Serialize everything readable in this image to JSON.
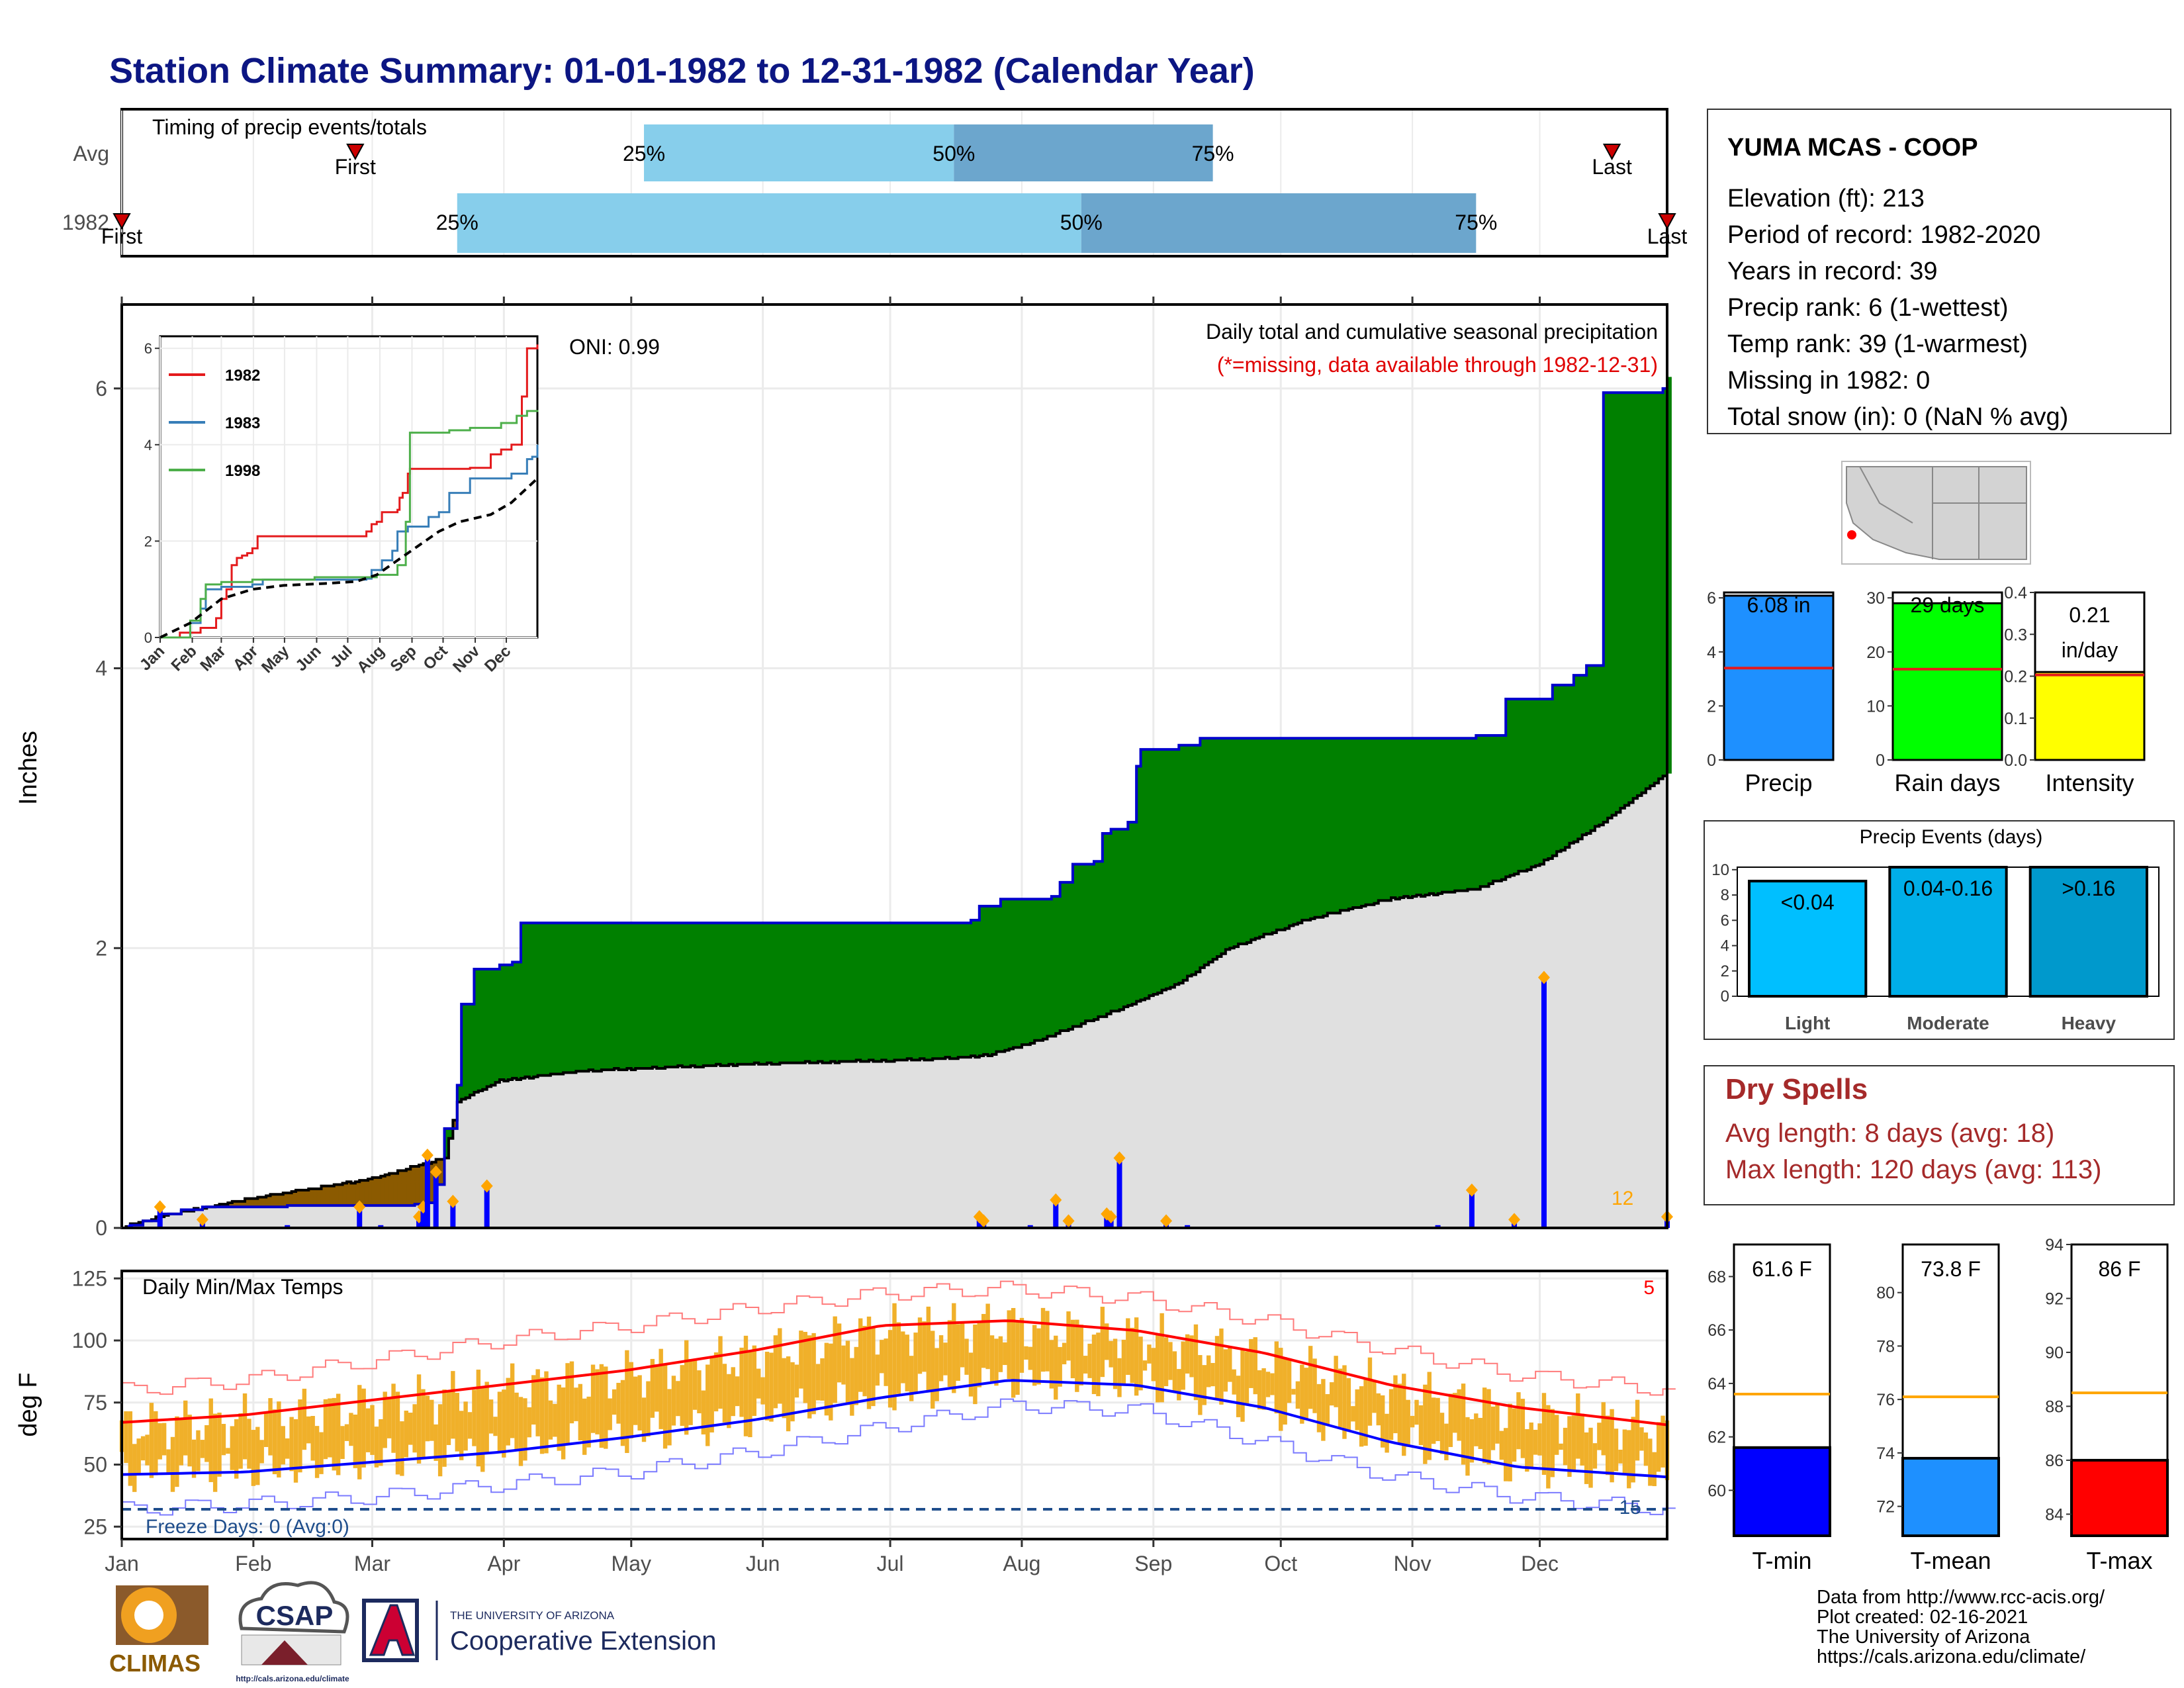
{
  "title": "Station Climate Summary: 01-01-1982 to 12-31-1982 (Calendar Year)",
  "timing": {
    "label": "Timing of precip events/totals",
    "rows": [
      {
        "name": "Avg",
        "first": "First",
        "last": "Last",
        "p25": "25%",
        "p50": "50%",
        "p75": "75%",
        "first_doy": 56,
        "q25_doy": 124,
        "q50_doy": 197,
        "q75_doy": 258,
        "last_doy": 352
      },
      {
        "name": "1982",
        "first": "First",
        "last": "Last",
        "p25": "25%",
        "p50": "50%",
        "p75": "75%",
        "first_doy": 1,
        "q25_doy": 80,
        "q50_doy": 227,
        "q75_doy": 320,
        "last_doy": 365
      }
    ],
    "colors": {
      "q1": "#87ceeb",
      "q2": "#6ca6cd",
      "marker": "#cc0000"
    }
  },
  "station": {
    "name": "YUMA MCAS - COOP",
    "lines": [
      "Elevation (ft): 213",
      "Period of record: 1982-2020",
      "Years in record: 39",
      "Precip rank: 6 (1-wettest)",
      "Temp rank: 39 (1-warmest)",
      "Missing in 1982: 0",
      "Total snow (in): 0 (NaN % avg)"
    ]
  },
  "precip_panel": {
    "ylabel": "Inches",
    "oni": "ONI: 0.99",
    "heading": "Daily total and cumulative seasonal precipitation",
    "missing_note": "(*=missing, data available through 1982-12-31)",
    "count_label": "12",
    "chart_data": {
      "type": "area",
      "ylim": [
        0,
        6.6
      ],
      "yticks": [
        0,
        2,
        4,
        6
      ],
      "cumulative_1982": [
        [
          1,
          0
        ],
        [
          3,
          0.02
        ],
        [
          6,
          0.05
        ],
        [
          10,
          0.1
        ],
        [
          15,
          0.13
        ],
        [
          20,
          0.15
        ],
        [
          40,
          0.16
        ],
        [
          70,
          0.17
        ],
        [
          72,
          0.18
        ],
        [
          75,
          0.31
        ],
        [
          77,
          0.71
        ],
        [
          80,
          1.02
        ],
        [
          81,
          1.6
        ],
        [
          84,
          1.85
        ],
        [
          90,
          1.88
        ],
        [
          93,
          1.9
        ],
        [
          95,
          2.18
        ],
        [
          180,
          2.18
        ],
        [
          201,
          2.2
        ],
        [
          203,
          2.3
        ],
        [
          208,
          2.35
        ],
        [
          220,
          2.37
        ],
        [
          222,
          2.47
        ],
        [
          225,
          2.6
        ],
        [
          230,
          2.62
        ],
        [
          232,
          2.82
        ],
        [
          234,
          2.85
        ],
        [
          238,
          2.9
        ],
        [
          240,
          3.3
        ],
        [
          241,
          3.42
        ],
        [
          250,
          3.45
        ],
        [
          255,
          3.5
        ],
        [
          320,
          3.52
        ],
        [
          327,
          3.78
        ],
        [
          338,
          3.88
        ],
        [
          343,
          3.95
        ],
        [
          346,
          4.02
        ],
        [
          350,
          5.97
        ],
        [
          364,
          6.0
        ],
        [
          365,
          6.08
        ]
      ],
      "cumulative_avg": [
        [
          1,
          0
        ],
        [
          10,
          0.08
        ],
        [
          30,
          0.2
        ],
        [
          60,
          0.35
        ],
        [
          77,
          0.5
        ],
        [
          80,
          0.9
        ],
        [
          90,
          1.05
        ],
        [
          110,
          1.12
        ],
        [
          150,
          1.17
        ],
        [
          190,
          1.2
        ],
        [
          205,
          1.23
        ],
        [
          218,
          1.35
        ],
        [
          235,
          1.55
        ],
        [
          250,
          1.75
        ],
        [
          262,
          2.0
        ],
        [
          280,
          2.2
        ],
        [
          300,
          2.35
        ],
        [
          320,
          2.42
        ],
        [
          335,
          2.6
        ],
        [
          350,
          2.9
        ],
        [
          365,
          3.25
        ]
      ],
      "daily_bars": [
        [
          3,
          0.02
        ],
        [
          10,
          0.15
        ],
        [
          20,
          0.06
        ],
        [
          40,
          0.02
        ],
        [
          57,
          0.15
        ],
        [
          62,
          0.02
        ],
        [
          71,
          0.08
        ],
        [
          72,
          0.15
        ],
        [
          73,
          0.52
        ],
        [
          75,
          0.4
        ],
        [
          79,
          0.19
        ],
        [
          87,
          0.3
        ],
        [
          203,
          0.08
        ],
        [
          204,
          0.05
        ],
        [
          215,
          0.02
        ],
        [
          221,
          0.2
        ],
        [
          224,
          0.05
        ],
        [
          233,
          0.1
        ],
        [
          234,
          0.08
        ],
        [
          236,
          0.5
        ],
        [
          247,
          0.05
        ],
        [
          252,
          0.02
        ],
        [
          311,
          0.02
        ],
        [
          319,
          0.27
        ],
        [
          329,
          0.06
        ],
        [
          336,
          1.79
        ],
        [
          365,
          0.08
        ]
      ],
      "colors": {
        "surplus": "#008000",
        "deficit": "#8b5a00",
        "avg": "#e0e0e0",
        "bars": "#0000ff",
        "marker": "#ffa500"
      }
    }
  },
  "inset": {
    "series": [
      {
        "name": "1982",
        "color": "#e41a1c",
        "points": [
          [
            1,
            0
          ],
          [
            20,
            0.1
          ],
          [
            40,
            0.2
          ],
          [
            55,
            0.4
          ],
          [
            60,
            0.8
          ],
          [
            65,
            1.0
          ],
          [
            70,
            1.5
          ],
          [
            75,
            1.65
          ],
          [
            80,
            1.7
          ],
          [
            85,
            1.75
          ],
          [
            90,
            1.85
          ],
          [
            95,
            2.1
          ],
          [
            185,
            2.1
          ],
          [
            200,
            2.2
          ],
          [
            205,
            2.35
          ],
          [
            210,
            2.4
          ],
          [
            215,
            2.6
          ],
          [
            230,
            2.65
          ],
          [
            232,
            2.9
          ],
          [
            235,
            3.0
          ],
          [
            240,
            3.4
          ],
          [
            242,
            3.5
          ],
          [
            300,
            3.52
          ],
          [
            320,
            3.8
          ],
          [
            330,
            3.9
          ],
          [
            340,
            4.0
          ],
          [
            350,
            5.0
          ],
          [
            355,
            6.0
          ],
          [
            365,
            6.08
          ]
        ]
      },
      {
        "name": "1983",
        "color": "#377eb8",
        "points": [
          [
            1,
            0
          ],
          [
            30,
            0.3
          ],
          [
            40,
            0.6
          ],
          [
            45,
            1.0
          ],
          [
            60,
            1.05
          ],
          [
            90,
            1.1
          ],
          [
            100,
            1.2
          ],
          [
            200,
            1.22
          ],
          [
            205,
            1.4
          ],
          [
            215,
            1.6
          ],
          [
            225,
            1.8
          ],
          [
            230,
            2.2
          ],
          [
            240,
            2.3
          ],
          [
            260,
            2.5
          ],
          [
            270,
            2.6
          ],
          [
            280,
            3.0
          ],
          [
            300,
            3.3
          ],
          [
            340,
            3.4
          ],
          [
            355,
            3.7
          ],
          [
            360,
            3.75
          ],
          [
            365,
            4.0
          ]
        ]
      },
      {
        "name": "1998",
        "color": "#4daf4a",
        "points": [
          [
            1,
            0
          ],
          [
            30,
            0.35
          ],
          [
            40,
            0.8
          ],
          [
            45,
            1.1
          ],
          [
            60,
            1.15
          ],
          [
            90,
            1.2
          ],
          [
            150,
            1.25
          ],
          [
            200,
            1.25
          ],
          [
            210,
            1.3
          ],
          [
            230,
            1.5
          ],
          [
            238,
            2.4
          ],
          [
            242,
            4.25
          ],
          [
            280,
            4.3
          ],
          [
            300,
            4.35
          ],
          [
            330,
            4.45
          ],
          [
            345,
            4.6
          ],
          [
            355,
            4.7
          ],
          [
            365,
            4.72
          ]
        ]
      },
      {
        "name": "avg",
        "color": "#000000",
        "points": [
          [
            1,
            0
          ],
          [
            30,
            0.3
          ],
          [
            60,
            0.8
          ],
          [
            90,
            1.0
          ],
          [
            120,
            1.08
          ],
          [
            160,
            1.12
          ],
          [
            190,
            1.16
          ],
          [
            210,
            1.3
          ],
          [
            230,
            1.6
          ],
          [
            250,
            1.9
          ],
          [
            270,
            2.2
          ],
          [
            290,
            2.4
          ],
          [
            320,
            2.55
          ],
          [
            340,
            2.8
          ],
          [
            355,
            3.1
          ],
          [
            365,
            3.3
          ]
        ]
      }
    ],
    "months": [
      "Jan",
      "Feb",
      "Mar",
      "Apr",
      "May",
      "Jun",
      "Jul",
      "Aug",
      "Sep",
      "Oct",
      "Nov",
      "Dec"
    ],
    "yticks": [
      0,
      2,
      4,
      6
    ]
  },
  "summary_bars": {
    "charts": [
      {
        "label": "Precip",
        "value_text": "6.08 in",
        "value": 6.08,
        "avg": 3.4,
        "ymax": 6.2,
        "ticks": [
          0,
          2,
          4,
          6
        ],
        "color": "#1e90ff"
      },
      {
        "label": "Rain days",
        "value_text": "29 days",
        "value": 29,
        "avg": 16.8,
        "ymax": 31,
        "ticks": [
          0,
          10,
          20,
          30
        ],
        "color": "#00ff00"
      },
      {
        "label": "Intensity",
        "value_text": "0.21 in/day",
        "value_line1": "0.21",
        "value_line2": "in/day",
        "value": 0.21,
        "avg": 0.203,
        "ymax": 0.4,
        "ticks": [
          0.0,
          0.1,
          0.2,
          0.3,
          0.4
        ],
        "color": "#ffff00"
      }
    ],
    "avg_color": "#e41a1c"
  },
  "precip_events": {
    "title": "Precip Events (days)",
    "ymax": 10.2,
    "ticks": [
      0,
      2,
      4,
      6,
      8,
      10
    ],
    "bars": [
      {
        "category": "Light",
        "label": "<0.04",
        "value": 9.1,
        "color": "#00bfff"
      },
      {
        "category": "Moderate",
        "label": "0.04-0.16",
        "value": 10.2,
        "color": "#00aee8"
      },
      {
        "category": "Heavy",
        "label": ">0.16",
        "value": 10.2,
        "color": "#0099cc"
      }
    ]
  },
  "dry_spells": {
    "title": "Dry Spells",
    "avg": "Avg length: 8 days (avg: 18)",
    "max": "Max length: 120 days (avg: 113)",
    "color": "#a52a2a"
  },
  "temp_panel": {
    "ylabel": "deg F",
    "label": "Daily Min/Max Temps",
    "freeze": "Freeze Days: 0 (Avg:0)",
    "hot_count": "5",
    "cold_count": "15",
    "chart_data": {
      "type": "bar",
      "ylim": [
        20,
        128
      ],
      "yticks": [
        25,
        50,
        75,
        100,
        125
      ],
      "freeze_line": 32,
      "avg_max": [
        [
          1,
          67
        ],
        [
          30,
          70
        ],
        [
          60,
          76
        ],
        [
          90,
          82
        ],
        [
          120,
          88
        ],
        [
          150,
          96
        ],
        [
          180,
          106
        ],
        [
          210,
          108
        ],
        [
          240,
          104
        ],
        [
          270,
          95
        ],
        [
          300,
          82
        ],
        [
          330,
          73
        ],
        [
          365,
          66
        ]
      ],
      "avg_min": [
        [
          1,
          46
        ],
        [
          30,
          47
        ],
        [
          60,
          51
        ],
        [
          90,
          55
        ],
        [
          120,
          61
        ],
        [
          150,
          68
        ],
        [
          180,
          77
        ],
        [
          210,
          84
        ],
        [
          240,
          82
        ],
        [
          270,
          73
        ],
        [
          300,
          59
        ],
        [
          330,
          49
        ],
        [
          365,
          45
        ]
      ],
      "record_max": [
        [
          1,
          80
        ],
        [
          30,
          84
        ],
        [
          60,
          92
        ],
        [
          90,
          100
        ],
        [
          120,
          106
        ],
        [
          150,
          113
        ],
        [
          180,
          119
        ],
        [
          210,
          121
        ],
        [
          240,
          117
        ],
        [
          270,
          108
        ],
        [
          300,
          96
        ],
        [
          330,
          86
        ],
        [
          365,
          80
        ]
      ],
      "record_min": [
        [
          1,
          32
        ],
        [
          30,
          34
        ],
        [
          60,
          37
        ],
        [
          90,
          42
        ],
        [
          120,
          47
        ],
        [
          150,
          55
        ],
        [
          180,
          65
        ],
        [
          210,
          74
        ],
        [
          240,
          72
        ],
        [
          270,
          59
        ],
        [
          300,
          45
        ],
        [
          330,
          37
        ],
        [
          365,
          32
        ]
      ],
      "colors": {
        "bars": "#f0b02a",
        "avg_max": "#ff0000",
        "avg_min": "#0000ff",
        "freeze": "#1f4e8c"
      }
    }
  },
  "temp_bars": {
    "charts": [
      {
        "label": "T-min",
        "value_text": "61.6 F",
        "value": 61.6,
        "avg": 63.6,
        "ymin": 58.3,
        "ymax": 69.2,
        "ticks": [
          60,
          62,
          64,
          66,
          68
        ],
        "color": "#0000ff"
      },
      {
        "label": "T-mean",
        "value_text": "73.8 F",
        "value": 73.8,
        "avg": 76.1,
        "ymin": 70.9,
        "ymax": 81.8,
        "ticks": [
          72,
          74,
          76,
          78,
          80
        ],
        "color": "#1e90ff"
      },
      {
        "label": "T-max",
        "value_text": "86 F",
        "value": 86.0,
        "avg": 88.5,
        "ymin": 83.2,
        "ymax": 94.0,
        "ticks": [
          84,
          86,
          88,
          90,
          92,
          94
        ],
        "color": "#ff0000"
      }
    ],
    "avg_color": "#ffa500"
  },
  "months": [
    "Jan",
    "Feb",
    "Mar",
    "Apr",
    "May",
    "Jun",
    "Jul",
    "Aug",
    "Sep",
    "Oct",
    "Nov",
    "Dec"
  ],
  "logos": {
    "climas": "CLIMAS",
    "csap": "CSAP",
    "csap_url": "http://cals.arizona.edu/climate",
    "ua_small": "THE UNIVERSITY OF ARIZONA",
    "ua_big": "Cooperative Extension"
  },
  "credits": [
    "Data from http://www.rcc-acis.org/",
    "Plot created: 02-16-2021",
    "The University of Arizona",
    "https://cals.arizona.edu/climate/"
  ]
}
